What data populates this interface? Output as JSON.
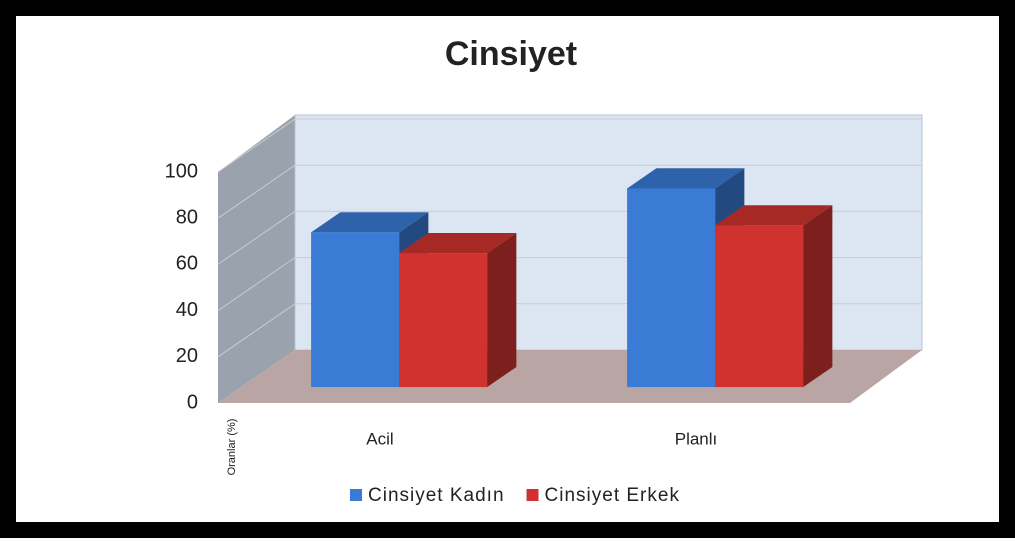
{
  "chart_data": {
    "type": "bar3d",
    "title": "Cinsiyet",
    "y_label": "Oranlar (%)",
    "categories": [
      "Acil",
      "Planlı"
    ],
    "series": [
      {
        "name": "Cinsiyet Kadın",
        "color": "#3a7bd5",
        "values": [
          67,
          86
        ]
      },
      {
        "name": "Cinsiyet Erkek",
        "color": "#d0332f",
        "values": [
          58,
          70
        ]
      }
    ],
    "ylim": [
      0,
      100
    ],
    "yticks": [
      0,
      20,
      40,
      60,
      80,
      100
    ],
    "grid": true
  }
}
